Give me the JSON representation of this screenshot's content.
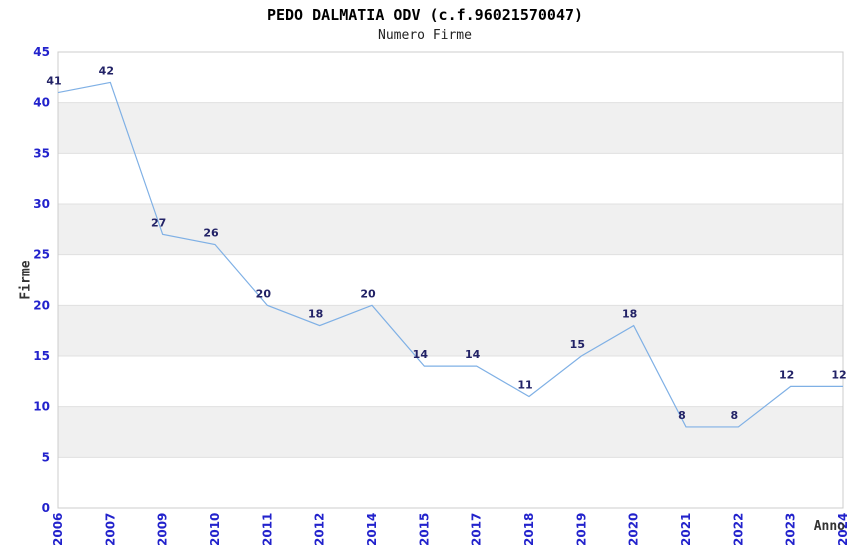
{
  "chart_data": {
    "type": "line",
    "title": "PEDO DALMATIA ODV (c.f.96021570047)",
    "subtitle": "Numero Firme",
    "xlabel": "Anno",
    "ylabel": "Firme",
    "categories": [
      "2006",
      "2007",
      "2009",
      "2010",
      "2011",
      "2012",
      "2014",
      "2015",
      "2017",
      "2018",
      "2019",
      "2020",
      "2021",
      "2022",
      "2023",
      "2024"
    ],
    "values": [
      41,
      42,
      27,
      26,
      20,
      18,
      20,
      14,
      14,
      11,
      15,
      18,
      8,
      8,
      12,
      12
    ],
    "ylim": [
      0,
      45
    ],
    "yticks": [
      0,
      5,
      10,
      15,
      20,
      25,
      30,
      35,
      40,
      45
    ],
    "band_ranges": [
      [
        5,
        10
      ],
      [
        15,
        20
      ],
      [
        25,
        30
      ],
      [
        35,
        40
      ]
    ],
    "legend": "none",
    "grid": "horizontal-band-edges",
    "colors": {
      "line": "#7fb0e5",
      "value_label": "#222266",
      "tick_label": "#2222cc",
      "band": "#f0f0f0",
      "band_edge": "#e0e0e0",
      "plot_border": "#cccccc",
      "title": "#000000",
      "subtitle": "#222222",
      "axis_label": "#333333"
    }
  }
}
